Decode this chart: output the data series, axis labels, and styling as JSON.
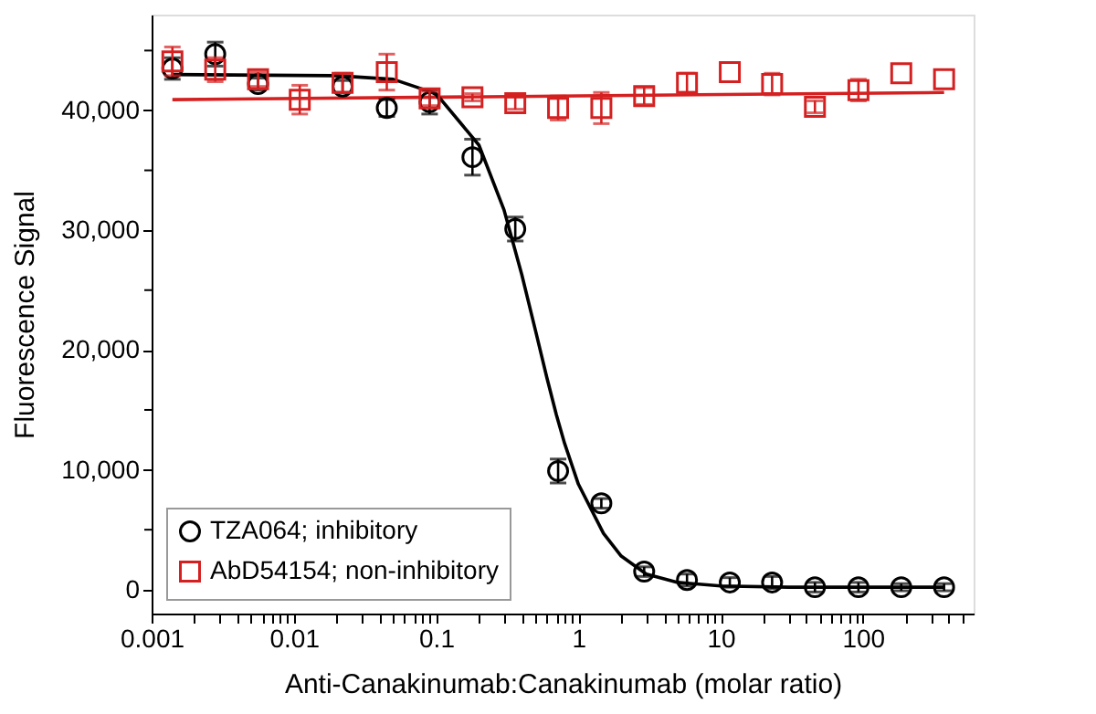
{
  "chart_data": {
    "type": "scatter",
    "xlabel": "Anti-Canakinumab:Canakinumab (molar ratio)",
    "ylabel": "Fluorescence Signal",
    "log": "x",
    "grid": false,
    "legend": "bottom left",
    "xlim": [
      0.001,
      600
    ],
    "ylim": [
      -2000,
      48000
    ],
    "xticks": [
      0.001,
      {
        "value": 0.002,
        "label": null
      },
      {
        "value": 0.003,
        "label": null
      },
      {
        "value": 0.004,
        "label": null
      },
      {
        "value": 0.005,
        "label": null
      },
      {
        "value": 0.006,
        "label": null
      },
      {
        "value": 0.007,
        "label": null
      },
      {
        "value": 0.008,
        "label": null
      },
      {
        "value": 0.009,
        "label": null
      },
      0.01,
      {
        "value": 0.02,
        "label": null
      },
      {
        "value": 0.03,
        "label": null
      },
      {
        "value": 0.04,
        "label": null
      },
      {
        "value": 0.05,
        "label": null
      },
      {
        "value": 0.06,
        "label": null
      },
      {
        "value": 0.07,
        "label": null
      },
      {
        "value": 0.08,
        "label": null
      },
      {
        "value": 0.09,
        "label": null
      },
      0.1,
      {
        "value": 0.2,
        "label": null
      },
      {
        "value": 0.3,
        "label": null
      },
      {
        "value": 0.4,
        "label": null
      },
      {
        "value": 0.5,
        "label": null
      },
      {
        "value": 0.6,
        "label": null
      },
      {
        "value": 0.7,
        "label": null
      },
      {
        "value": 0.8,
        "label": null
      },
      {
        "value": 0.9,
        "label": null
      },
      1,
      {
        "value": 2,
        "label": null
      },
      {
        "value": 3,
        "label": null
      },
      {
        "value": 4,
        "label": null
      },
      {
        "value": 5,
        "label": null
      },
      {
        "value": 6,
        "label": null
      },
      {
        "value": 7,
        "label": null
      },
      {
        "value": 8,
        "label": null
      },
      {
        "value": 9,
        "label": null
      },
      10,
      {
        "value": 20,
        "label": null
      },
      {
        "value": 30,
        "label": null
      },
      {
        "value": 40,
        "label": null
      },
      {
        "value": 50,
        "label": null
      },
      {
        "value": 60,
        "label": null
      },
      {
        "value": 70,
        "label": null
      },
      {
        "value": 80,
        "label": null
      },
      {
        "value": 90,
        "label": null
      },
      100,
      {
        "value": 200,
        "label": null
      },
      {
        "value": 300,
        "label": null
      },
      {
        "value": 400,
        "label": null
      },
      {
        "value": 500,
        "label": null
      }
    ],
    "yticks": [
      0,
      {
        "value": 5000,
        "label": null
      },
      {
        "value": 10000,
        "label": "10,000"
      },
      {
        "value": 15000,
        "label": null
      },
      {
        "value": 20000,
        "label": "20,000"
      },
      {
        "value": 25000,
        "label": null
      },
      {
        "value": 30000,
        "label": "30,000"
      },
      {
        "value": 35000,
        "label": null
      },
      {
        "value": 40000,
        "label": "40,000"
      },
      {
        "value": 45000,
        "label": null
      }
    ],
    "x": [
      0.0014,
      0.0028,
      0.0056,
      0.011,
      0.022,
      0.045,
      0.09,
      0.18,
      0.36,
      0.72,
      1.45,
      2.9,
      5.8,
      11.6,
      23,
      46,
      93,
      186,
      372
    ],
    "series": [
      {
        "type": "line",
        "marker": "none",
        "line_style": "solid",
        "color": "#d42020",
        "x": [
          0.0014,
          372
        ],
        "values": [
          40900,
          41500
        ]
      },
      {
        "type": "line",
        "marker": "none",
        "line_style": "solid",
        "color": "#000000",
        "x": [
          0.0014,
          0.02,
          0.05,
          0.1,
          0.2,
          0.3,
          0.4,
          0.5,
          0.6,
          0.7,
          0.8,
          1,
          1.5,
          2,
          3,
          5,
          10,
          30,
          100,
          372
        ],
        "values": [
          43000,
          42900,
          42600,
          41400,
          37100,
          31700,
          26300,
          21600,
          17700,
          14600,
          12200,
          8800,
          4700,
          2800,
          1300,
          600,
          300,
          200,
          200,
          200
        ]
      },
      {
        "name": "TZA064; inhibitory",
        "marker": "circle",
        "color": "#000000",
        "values": [
          43500,
          44700,
          42200,
          null,
          42000,
          40200,
          40700,
          36100,
          30100,
          9900,
          7200,
          1500,
          800,
          600,
          600,
          200,
          200,
          200,
          200
        ],
        "errors": [
          900,
          1000,
          500,
          null,
          500,
          700,
          1000,
          1500,
          1000,
          1000,
          400,
          400,
          500,
          400,
          500,
          400,
          400,
          300,
          300
        ]
      },
      {
        "name": "AbD54154; non-inhibitory",
        "marker": "square",
        "color": "#d42020",
        "values": [
          44100,
          43400,
          42600,
          40900,
          42300,
          43200,
          41000,
          41100,
          40600,
          40200,
          40200,
          41200,
          42300,
          43200,
          42200,
          40300,
          41700,
          43100,
          42600
        ],
        "errors": [
          1200,
          1000,
          600,
          1200,
          800,
          1500,
          600,
          300,
          500,
          1000,
          1300,
          700,
          800,
          null,
          900,
          500,
          900,
          null,
          null
        ]
      }
    ]
  }
}
